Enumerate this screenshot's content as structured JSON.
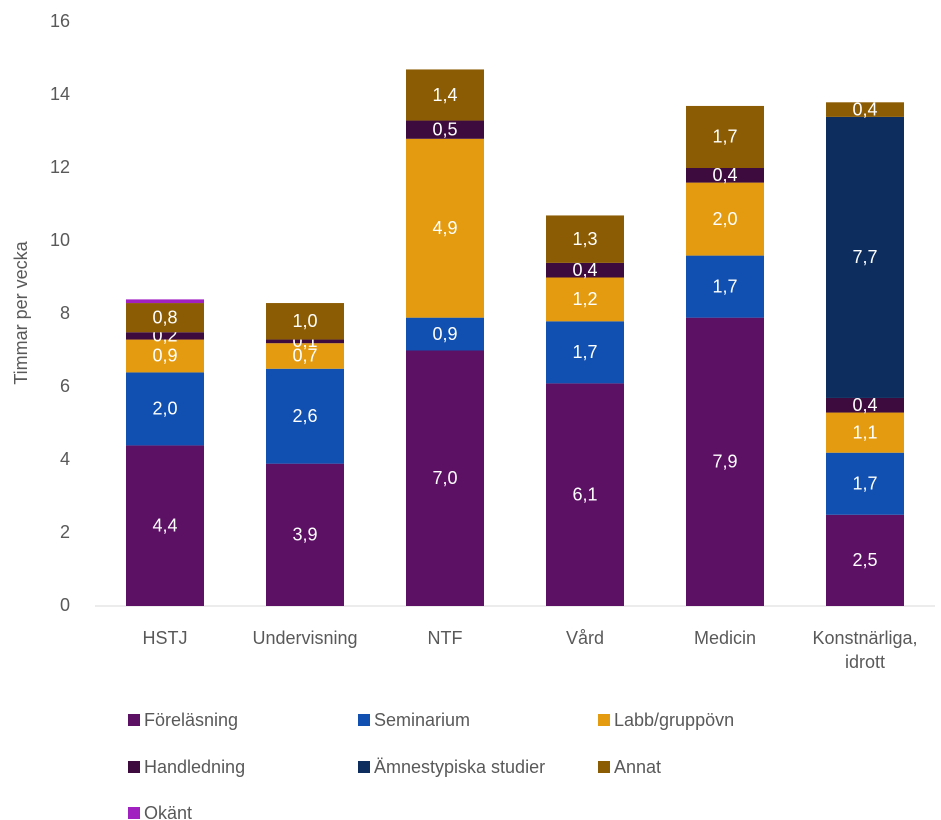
{
  "chart_data": {
    "type": "stacked_bar",
    "y_label": "Timmar per vecka",
    "categories": [
      "HSTJ",
      "Undervisning",
      "NTF",
      "Vård",
      "Medicin",
      "Konstnärliga, idrott"
    ],
    "ylim": [
      0,
      16
    ],
    "yticks": [
      0,
      2,
      4,
      6,
      8,
      10,
      12,
      14,
      16
    ],
    "legend": "bottom",
    "series": [
      {
        "name": "Föreläsning",
        "color": "#5c1165",
        "values": [
          4.4,
          3.9,
          7.0,
          6.1,
          7.9,
          2.5
        ],
        "value_labels": [
          "4,4",
          "3,9",
          "7,0",
          "6,1",
          "7,9",
          "2,5"
        ]
      },
      {
        "name": "Seminarium",
        "color": "#1150b0",
        "values": [
          2.0,
          2.6,
          0.9,
          1.7,
          1.7,
          1.7
        ],
        "value_labels": [
          "2,0",
          "2,6",
          "0,9",
          "1,7",
          "1,7",
          "1,7"
        ]
      },
      {
        "name": "Labb/gruppövn",
        "color": "#e49b10",
        "values": [
          0.9,
          0.7,
          4.9,
          1.2,
          2.0,
          1.1
        ],
        "value_labels": [
          "0,9",
          "0,7",
          "4,9",
          "1,2",
          "2,0",
          "1,1"
        ]
      },
      {
        "name": "Handledning",
        "color": "#3d0b3e",
        "values": [
          0.2,
          0.1,
          0.5,
          0.4,
          0.4,
          0.4
        ],
        "value_labels": [
          "0,2",
          "0,1",
          "0,5",
          "0,4",
          "0,4",
          "0,4"
        ]
      },
      {
        "name": "Ämnestypiska studier",
        "color": "#0c2d5e",
        "values": [
          null,
          null,
          null,
          null,
          null,
          7.7
        ],
        "value_labels": [
          null,
          null,
          null,
          null,
          null,
          "7,7"
        ]
      },
      {
        "name": "Annat",
        "color": "#8c5c04",
        "values": [
          0.8,
          1.0,
          1.4,
          1.3,
          1.7,
          0.4
        ],
        "value_labels": [
          "0,8",
          "1,0",
          "1,4",
          "1,3",
          "1,7",
          "0,4"
        ]
      },
      {
        "name": "Okänt",
        "color": "#a020c0",
        "values": [
          0.1,
          null,
          null,
          null,
          null,
          null
        ]
      }
    ]
  }
}
